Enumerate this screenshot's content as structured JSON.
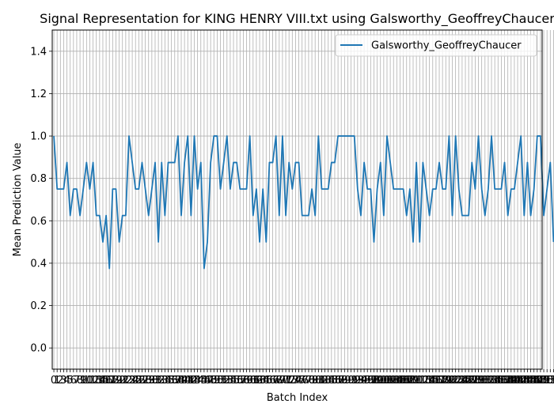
{
  "chart_data": {
    "type": "line",
    "title": "Signal Representation for KING HENRY VIII.txt using Galsworthy_GeoffreyChaucer",
    "xlabel": "Batch Index",
    "ylabel": "Mean Prediction Value",
    "xlim": [
      -0.5,
      149.5
    ],
    "ylim": [
      -0.1,
      1.5
    ],
    "yticks": [
      0.0,
      0.2,
      0.4,
      0.6,
      0.8,
      1.0,
      1.2,
      1.4
    ],
    "ytick_labels": [
      "0.0",
      "0.2",
      "0.4",
      "0.6",
      "0.8",
      "1.0",
      "1.2",
      "1.4"
    ],
    "grid": true,
    "legend": "top-right",
    "colors": {
      "series": "#1f77b4",
      "grid": "#b0b0b0"
    },
    "series": [
      {
        "name": "Galsworthy_GeoffreyChaucer",
        "values": [
          1.0,
          0.75,
          0.75,
          0.75,
          0.875,
          0.625,
          0.75,
          0.75,
          0.625,
          0.75,
          0.875,
          0.75,
          0.875,
          0.625,
          0.625,
          0.5,
          0.625,
          0.375,
          0.75,
          0.75,
          0.5,
          0.625,
          0.625,
          1.0,
          0.875,
          0.75,
          0.75,
          0.875,
          0.75,
          0.625,
          0.75,
          0.875,
          0.5,
          0.875,
          0.625,
          0.875,
          0.875,
          0.875,
          1.0,
          0.625,
          0.875,
          1.0,
          0.625,
          1.0,
          0.75,
          0.875,
          0.375,
          0.5,
          0.875,
          1.0,
          1.0,
          0.75,
          0.875,
          1.0,
          0.75,
          0.875,
          0.875,
          0.75,
          0.75,
          0.75,
          1.0,
          0.625,
          0.75,
          0.5,
          0.75,
          0.5,
          0.875,
          0.875,
          1.0,
          0.625,
          1.0,
          0.625,
          0.875,
          0.75,
          0.875,
          0.875,
          0.625,
          0.625,
          0.625,
          0.75,
          0.625,
          1.0,
          0.75,
          0.75,
          0.75,
          0.875,
          0.875,
          1.0,
          1.0,
          1.0,
          1.0,
          1.0,
          1.0,
          0.75,
          0.625,
          0.875,
          0.75,
          0.75,
          0.5,
          0.75,
          0.875,
          0.625,
          1.0,
          0.875,
          0.75,
          0.75,
          0.75,
          0.75,
          0.625,
          0.75,
          0.5,
          0.875,
          0.5,
          0.875,
          0.75,
          0.625,
          0.75,
          0.75,
          0.875,
          0.75,
          0.75,
          1.0,
          0.625,
          1.0,
          0.75,
          0.625,
          0.625,
          0.625,
          0.875,
          0.75,
          1.0,
          0.75,
          0.625,
          0.75,
          1.0,
          0.75,
          0.75,
          0.75,
          0.875,
          0.625,
          0.75,
          0.75,
          0.875,
          1.0,
          0.625,
          0.875,
          0.625,
          0.75,
          1.0,
          1.0,
          0.625,
          0.75,
          0.875,
          0.5
        ]
      }
    ]
  }
}
